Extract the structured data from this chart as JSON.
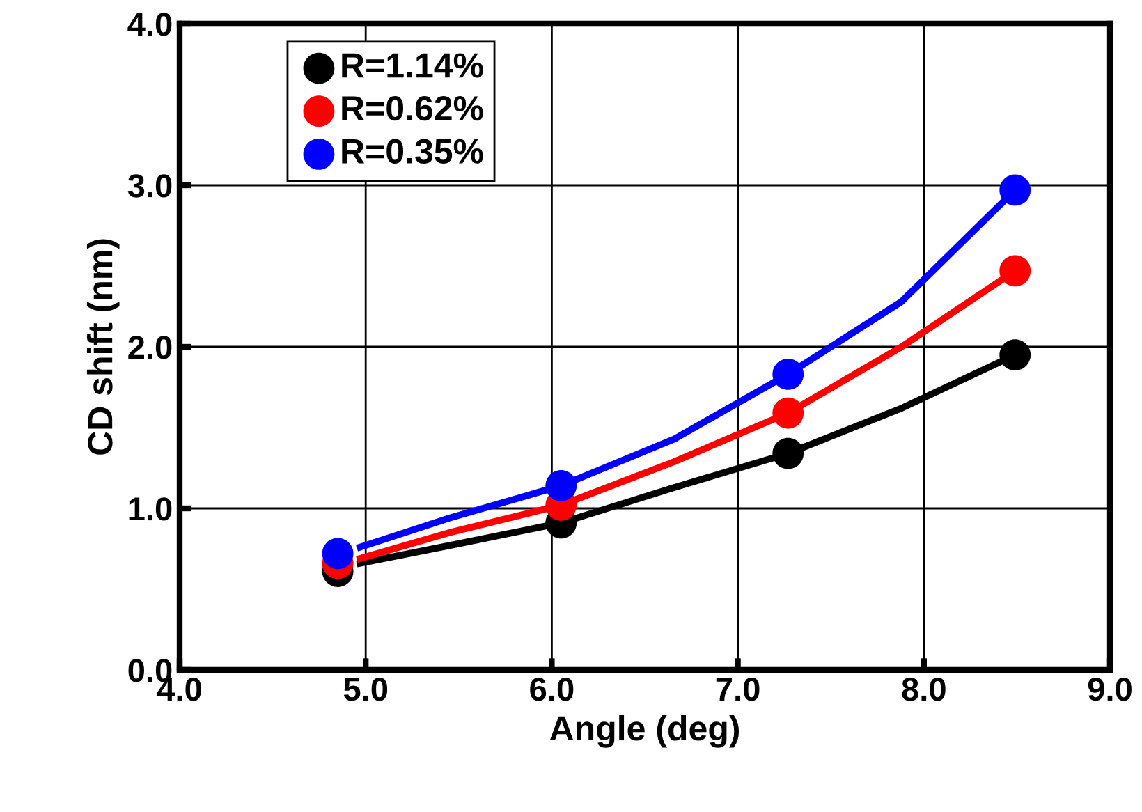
{
  "chart_data": {
    "type": "scatter",
    "xlabel": "Angle (deg)",
    "ylabel": "CD shift (nm)",
    "xlim": [
      4.0,
      9.0
    ],
    "xticks": [
      {
        "value": 4,
        "label": "4.0"
      },
      {
        "value": 5,
        "label": "5.0"
      },
      {
        "value": 6,
        "label": "6.0"
      },
      {
        "value": 7,
        "label": "7.0"
      },
      {
        "value": 8,
        "label": "8.0"
      },
      {
        "value": 9,
        "label": "9.0"
      }
    ],
    "ylim": [
      0.0,
      4.0
    ],
    "yticks": [
      {
        "value": 0,
        "label": "0.0"
      },
      {
        "value": 1,
        "label": "1.0"
      },
      {
        "value": 2,
        "label": "2.0"
      },
      {
        "value": 3,
        "label": "3.0"
      },
      {
        "value": 4,
        "label": "4.0"
      }
    ],
    "grid": true,
    "legend": "top left",
    "series": [
      {
        "type": "line",
        "marker": "none",
        "color": "#000000",
        "x": [
          4.97,
          5.45,
          6.05,
          6.66,
          7.27,
          7.88,
          8.49
        ],
        "values": [
          0.66,
          0.77,
          0.91,
          1.13,
          1.34,
          1.62,
          1.95
        ]
      },
      {
        "type": "line",
        "marker": "none",
        "color": "#ff0000",
        "x": [
          4.97,
          5.45,
          6.05,
          6.66,
          7.27,
          7.88,
          8.49
        ],
        "values": [
          0.69,
          0.85,
          1.02,
          1.29,
          1.59,
          2.0,
          2.47
        ]
      },
      {
        "type": "line",
        "marker": "none",
        "color": "#0000ff",
        "x": [
          4.97,
          5.45,
          6.05,
          6.66,
          7.27,
          7.88,
          8.49
        ],
        "values": [
          0.76,
          0.94,
          1.14,
          1.43,
          1.83,
          2.28,
          2.97
        ]
      },
      {
        "name": "R=1.14%",
        "marker": "circle",
        "color": "#000000",
        "x": [
          4.85,
          6.05,
          7.27,
          8.49
        ],
        "values": [
          0.61,
          0.91,
          1.34,
          1.95
        ]
      },
      {
        "name": "R=0.62%",
        "marker": "circle",
        "color": "#ff0000",
        "x": [
          4.85,
          6.05,
          7.27,
          8.49
        ],
        "values": [
          0.66,
          1.02,
          1.59,
          2.47
        ]
      },
      {
        "name": "R=0.35%",
        "marker": "circle",
        "color": "#0000ff",
        "x": [
          4.85,
          6.05,
          7.27,
          8.49
        ],
        "values": [
          0.72,
          1.14,
          1.83,
          2.97
        ]
      }
    ]
  }
}
